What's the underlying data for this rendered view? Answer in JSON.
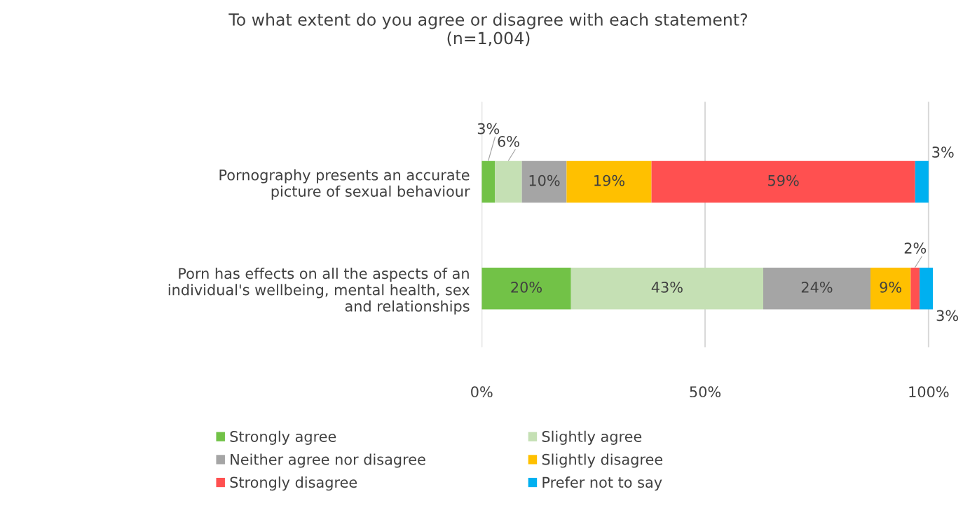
{
  "chart_data": {
    "type": "bar",
    "orientation": "horizontal",
    "stacked": true,
    "title": "To what extent do you agree or disagree with each statement?\n(n=1,004)",
    "categories": [
      "Pornography presents an accurate\npicture of sexual behaviour",
      "Porn has effects on all the aspects of an\nindividual's wellbeing, mental health, sex\nand relationships"
    ],
    "series": [
      {
        "name": "Strongly agree",
        "color": "#72c247",
        "values": [
          3,
          20
        ],
        "value_labels": [
          "3%",
          "20%"
        ]
      },
      {
        "name": "Slightly agree",
        "color": "#c5e0b4",
        "values": [
          6,
          43
        ],
        "value_labels": [
          "6%",
          "43%"
        ]
      },
      {
        "name": "Neither agree nor disagree",
        "color": "#a5a5a5",
        "values": [
          10,
          24
        ],
        "value_labels": [
          "10%",
          "24%"
        ]
      },
      {
        "name": "Slightly disagree",
        "color": "#ffc000",
        "values": [
          19,
          9
        ],
        "value_labels": [
          "19%",
          "9%"
        ]
      },
      {
        "name": "Strongly disagree",
        "color": "#ff5050",
        "values": [
          59,
          2
        ],
        "value_labels": [
          "59%",
          "2%"
        ]
      },
      {
        "name": "Prefer not to say",
        "color": "#00b0f0",
        "values": [
          3,
          3
        ],
        "value_labels": [
          "3%",
          "3%"
        ]
      }
    ],
    "xlim": [
      0,
      101
    ],
    "xticks": [
      {
        "value": 0,
        "label": "0%"
      },
      {
        "value": 50,
        "label": "50%"
      },
      {
        "value": 100,
        "label": "100%"
      }
    ],
    "grid": "x",
    "legend": "bottom"
  }
}
